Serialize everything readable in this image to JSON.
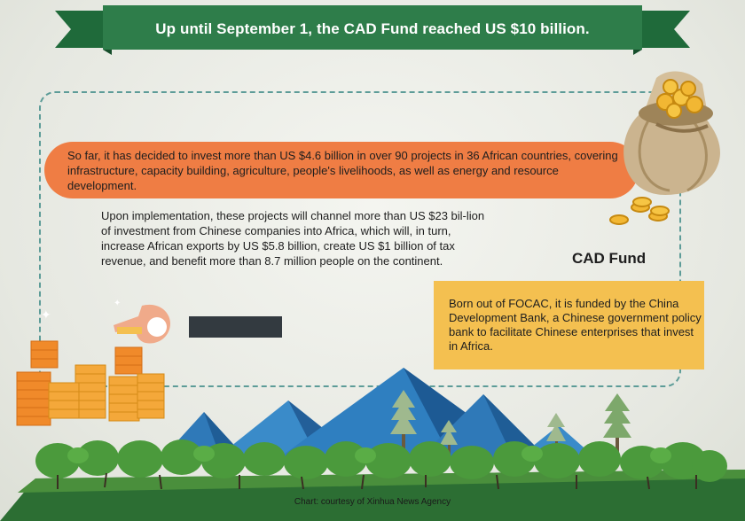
{
  "banner": {
    "title": "Up until September 1, the CAD Fund reached US $10 billion.",
    "color": "#2e7d4a"
  },
  "highlight": {
    "text": "So far, it has decided to invest more than US $4.6 billion in over 90 projects in 36 African countries, covering infrastructure, capacity building, agriculture, people's livelihoods, as well as energy and resource development.",
    "color": "#ef7d44"
  },
  "body": {
    "text": "Upon implementation, these projects will channel more than US $23 bil-lion of investment from Chinese companies into Africa, which will, in turn, increase African exports by US $5.8 billion, create US $1 billion of tax revenue, and benefit more than 8.7 million people on the continent."
  },
  "cad_fund": {
    "heading": "CAD Fund",
    "text": "Born out of FOCAC, it is funded by the China Development Bank, a Chinese government policy bank to facilitate Chinese enterprises that invest in Africa.",
    "color": "#f4c050"
  },
  "footer": {
    "credit": "Chart: courtesy of Xinhua News Agency"
  },
  "icons": [
    "money-bag-icon",
    "coin-icon",
    "coin-stack-icon",
    "hand-icon",
    "mountain-icon",
    "pine-tree-icon",
    "bush-icon",
    "sparkle-icon"
  ]
}
